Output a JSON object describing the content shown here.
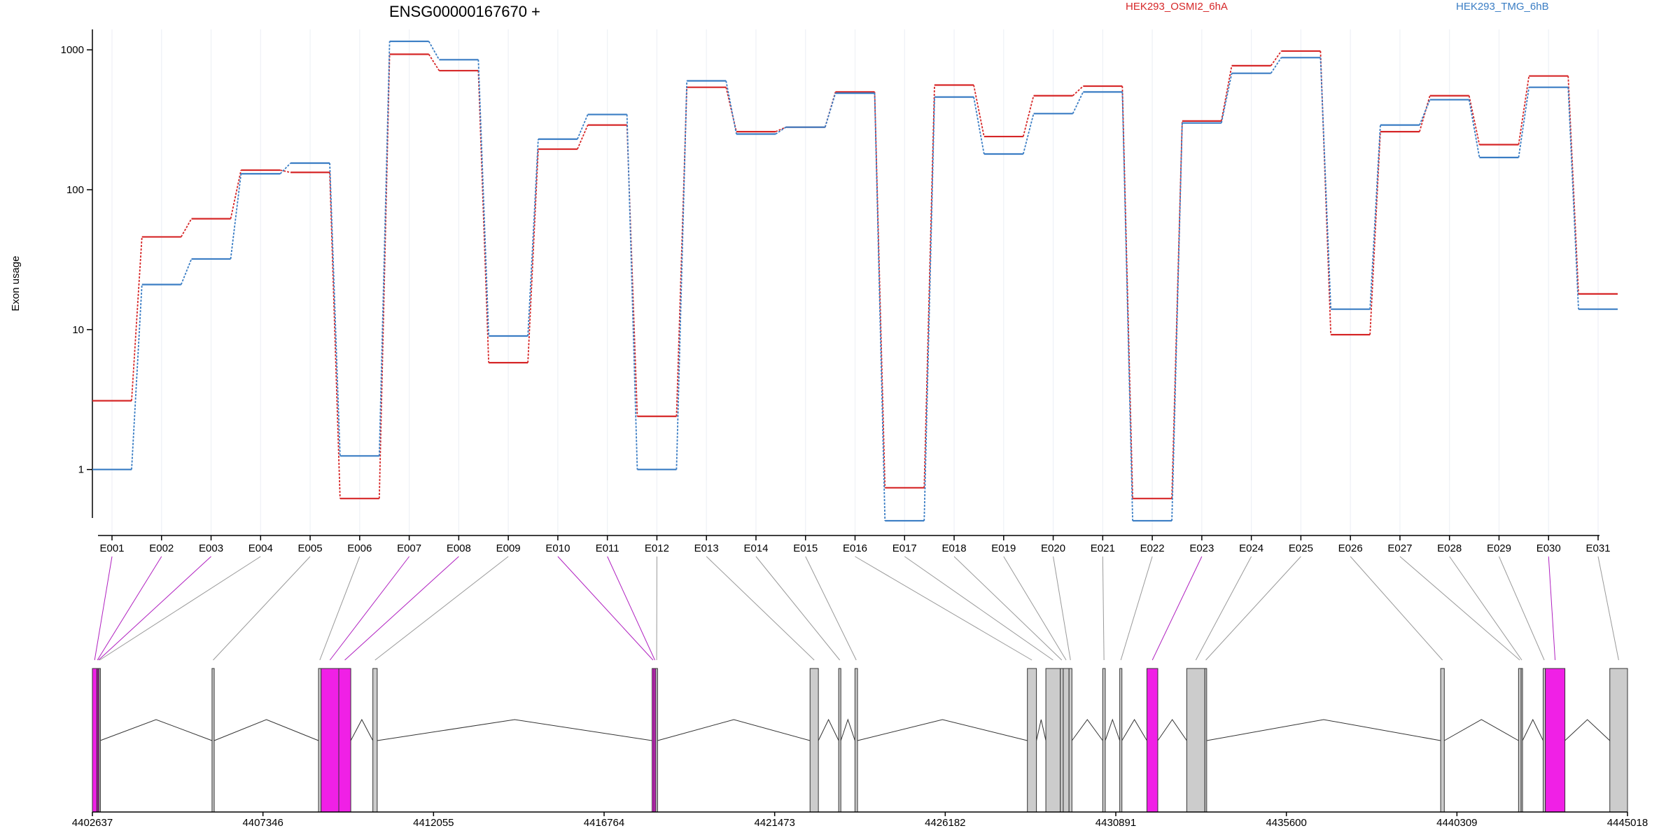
{
  "chart_data": {
    "type": "line",
    "title": "ENSG00000167670 +",
    "ylabel": "Exon usage",
    "yscale": "log",
    "ylim": [
      0.45,
      1400
    ],
    "yticks": [
      "1",
      "10",
      "100",
      "1000"
    ],
    "grid": "vertical",
    "legend_placement": "top-right",
    "categories": [
      "E001",
      "E002",
      "E003",
      "E004",
      "E005",
      "E006",
      "E007",
      "E008",
      "E009",
      "E010",
      "E011",
      "E012",
      "E013",
      "E014",
      "E015",
      "E016",
      "E017",
      "E018",
      "E019",
      "E020",
      "E021",
      "E022",
      "E023",
      "E024",
      "E025",
      "E026",
      "E027",
      "E028",
      "E029",
      "E030",
      "E031"
    ],
    "series": [
      {
        "name": "HEK293_OSMI2_6hA",
        "color": "#d62728",
        "values": [
          3.1,
          46,
          62,
          138,
          133,
          0.62,
          930,
          710,
          5.8,
          195,
          290,
          2.4,
          540,
          260,
          280,
          500,
          0.74,
          560,
          240,
          470,
          550,
          0.62,
          310,
          770,
          980,
          9.2,
          260,
          470,
          210,
          650,
          18
        ]
      },
      {
        "name": "HEK293_TMG_6hB",
        "color": "#3a7dc4",
        "values": [
          1.0,
          21,
          32,
          130,
          155,
          1.25,
          1150,
          850,
          9.0,
          230,
          345,
          1.0,
          600,
          250,
          280,
          490,
          0.43,
          460,
          180,
          350,
          500,
          0.43,
          300,
          680,
          880,
          14,
          290,
          440,
          170,
          540,
          14
        ]
      }
    ],
    "gene_model": {
      "genomic_ticks": [
        "4402637",
        "4407346",
        "4412055",
        "4416764",
        "4421473",
        "4426182",
        "4430891",
        "4435600",
        "4440309",
        "4445018"
      ],
      "genomic_range": [
        4402637,
        4445018
      ],
      "exons": [
        {
          "id": "E001",
          "start": 4402637,
          "end": 4402760,
          "significant": true
        },
        {
          "id": "E002",
          "start": 4402760,
          "end": 4402790,
          "significant": true
        },
        {
          "id": "E003",
          "start": 4402790,
          "end": 4402820,
          "significant": true
        },
        {
          "id": "E004",
          "start": 4402820,
          "end": 4402850,
          "significant": false
        },
        {
          "id": "E005",
          "start": 4405940,
          "end": 4406000,
          "significant": false
        },
        {
          "id": "E006",
          "start": 4408880,
          "end": 4408950,
          "significant": false
        },
        {
          "id": "E007",
          "start": 4408950,
          "end": 4409440,
          "significant": true
        },
        {
          "id": "E008",
          "start": 4409440,
          "end": 4409770,
          "significant": true
        },
        {
          "id": "E009",
          "start": 4410380,
          "end": 4410500,
          "significant": false
        },
        {
          "id": "E010",
          "start": 4418090,
          "end": 4418140,
          "significant": true
        },
        {
          "id": "E011",
          "start": 4418140,
          "end": 4418190,
          "significant": true
        },
        {
          "id": "E012",
          "start": 4418190,
          "end": 4418240,
          "significant": false
        },
        {
          "id": "E013",
          "start": 4422450,
          "end": 4422680,
          "significant": false
        },
        {
          "id": "E014",
          "start": 4423240,
          "end": 4423300,
          "significant": false
        },
        {
          "id": "E015",
          "start": 4423690,
          "end": 4423760,
          "significant": false
        },
        {
          "id": "E016",
          "start": 4428450,
          "end": 4428700,
          "significant": false
        },
        {
          "id": "E017",
          "start": 4428960,
          "end": 4429360,
          "significant": false
        },
        {
          "id": "E018",
          "start": 4429360,
          "end": 4429440,
          "significant": false
        },
        {
          "id": "E019",
          "start": 4429440,
          "end": 4429600,
          "significant": false
        },
        {
          "id": "E020",
          "start": 4429600,
          "end": 4429680,
          "significant": false
        },
        {
          "id": "E021",
          "start": 4430530,
          "end": 4430600,
          "significant": false
        },
        {
          "id": "E022",
          "start": 4431000,
          "end": 4431060,
          "significant": false
        },
        {
          "id": "E023",
          "start": 4431750,
          "end": 4432050,
          "significant": true
        },
        {
          "id": "E024",
          "start": 4432850,
          "end": 4433350,
          "significant": false
        },
        {
          "id": "E025",
          "start": 4433350,
          "end": 4433400,
          "significant": false
        },
        {
          "id": "E026",
          "start": 4439860,
          "end": 4439960,
          "significant": false
        },
        {
          "id": "E027",
          "start": 4442010,
          "end": 4442080,
          "significant": false
        },
        {
          "id": "E028",
          "start": 4442080,
          "end": 4442120,
          "significant": false
        },
        {
          "id": "E029",
          "start": 4442690,
          "end": 4442750,
          "significant": false
        },
        {
          "id": "E030",
          "start": 4442750,
          "end": 4443290,
          "significant": true
        },
        {
          "id": "E031",
          "start": 4444530,
          "end": 4445018,
          "significant": false
        }
      ]
    }
  }
}
